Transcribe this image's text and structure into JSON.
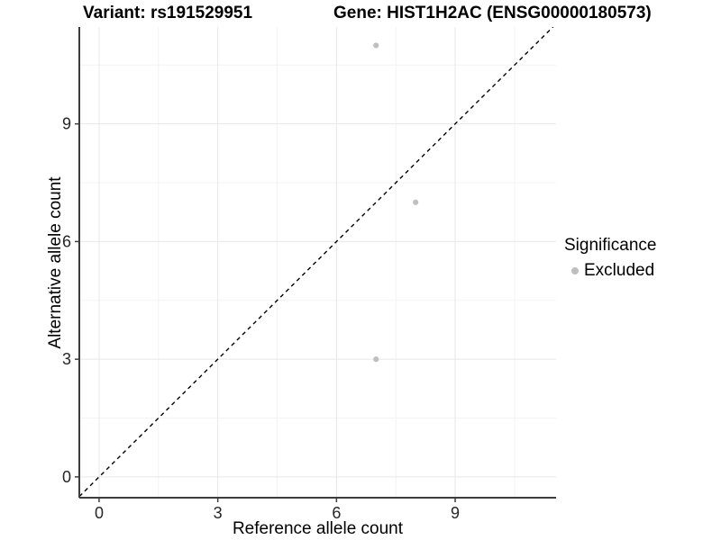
{
  "chart_data": {
    "type": "scatter",
    "title": {
      "left": "Variant: rs191529951",
      "right": "Gene: HIST1H2AC (ENSG00000180573)"
    },
    "xlabel": "Reference allele count",
    "ylabel": "Alternative allele count",
    "xlim": [
      -0.5,
      11.55
    ],
    "ylim": [
      -0.53,
      11.47
    ],
    "x_ticks_major": [
      0,
      3,
      6,
      9
    ],
    "y_ticks_major": [
      0,
      3,
      6,
      9
    ],
    "x_ticks_minor": [
      1.5,
      4.5,
      7.5,
      10.5
    ],
    "y_ticks_minor": [
      1.5,
      4.5,
      7.5,
      10.5
    ],
    "grid": true,
    "series": [
      {
        "name": "Excluded",
        "color": "#bfbfbf",
        "points": [
          {
            "x": 7,
            "y": 11
          },
          {
            "x": 8,
            "y": 7
          },
          {
            "x": 7,
            "y": 3
          }
        ]
      }
    ],
    "reference_line": {
      "description": "identity line y = x",
      "slope": 1,
      "intercept": 0,
      "style": "dashed",
      "color": "#000000"
    },
    "legend": {
      "title": "Significance",
      "position": "right",
      "items": [
        {
          "label": "Excluded",
          "color": "#bfbfbf"
        }
      ]
    }
  },
  "style": {
    "background": "#ffffff",
    "grid_major": "#e7e7e7",
    "grid_minor": "#f3f3f3",
    "axis_color": "#3d3d3d",
    "tick_label_color": "#262626",
    "dash_color": "#000000",
    "point_color": "#bfbfbf"
  }
}
